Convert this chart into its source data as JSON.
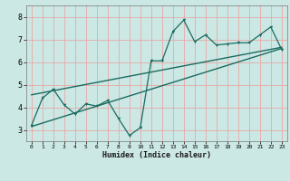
{
  "xlabel": "Humidex (Indice chaleur)",
  "background_color": "#cce8e5",
  "grid_color": "#e8a8a8",
  "line_color": "#1a6b60",
  "xlim": [
    -0.5,
    23.5
  ],
  "ylim": [
    2.5,
    8.5
  ],
  "xticks": [
    0,
    1,
    2,
    3,
    4,
    5,
    6,
    7,
    8,
    9,
    10,
    11,
    12,
    13,
    14,
    15,
    16,
    17,
    18,
    19,
    20,
    21,
    22,
    23
  ],
  "yticks": [
    3,
    4,
    5,
    6,
    7,
    8
  ],
  "data_x": [
    0,
    1,
    2,
    3,
    4,
    5,
    6,
    7,
    8,
    9,
    10,
    11,
    12,
    13,
    14,
    15,
    16,
    17,
    18,
    19,
    20,
    21,
    22,
    23
  ],
  "data_y": [
    3.2,
    4.4,
    4.8,
    4.1,
    3.7,
    4.15,
    4.05,
    4.3,
    3.5,
    2.75,
    3.1,
    6.05,
    6.05,
    7.35,
    7.85,
    6.9,
    7.2,
    6.75,
    6.8,
    6.85,
    6.85,
    7.2,
    7.55,
    6.55
  ],
  "reg_line1_x": [
    0,
    23
  ],
  "reg_line1_y": [
    3.15,
    6.6
  ],
  "reg_line2_x": [
    0,
    23
  ],
  "reg_line2_y": [
    4.55,
    6.65
  ]
}
